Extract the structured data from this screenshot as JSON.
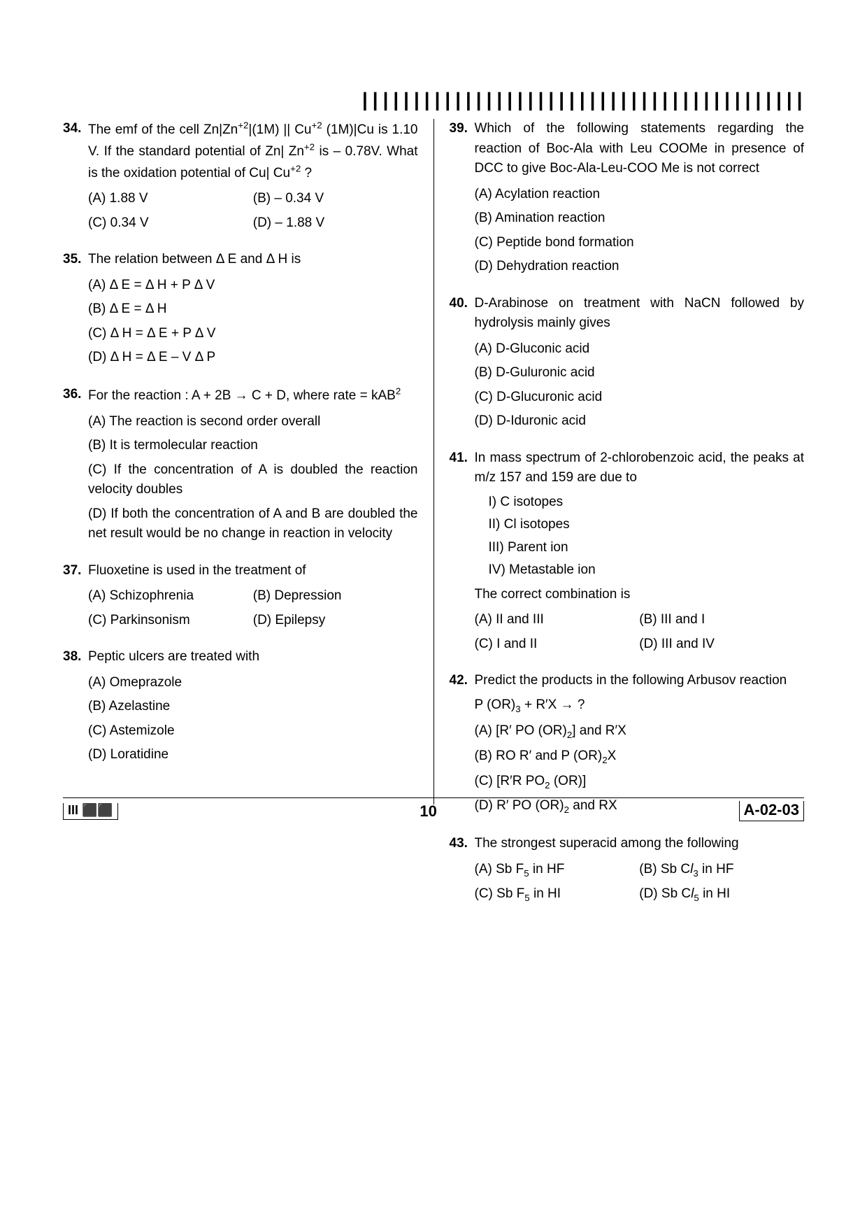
{
  "barcode_glyph": "|||||||||||||||||||||||||||||||||||||||||||",
  "footer": {
    "left": "III ⬛⬛",
    "page": "10",
    "right": "A-02-03"
  },
  "left": {
    "q34": {
      "num": "34.",
      "text_parts": [
        "The emf of the cell Zn|Zn",
        "+2",
        "|(1M) || Cu",
        "+2",
        " (1M)|Cu is 1.10 V. If the standard potential of Zn| Zn",
        "+2",
        " is – 0.78V. What is the oxidation potential of Cu| Cu",
        "+2",
        " ?"
      ],
      "A": "(A)  1.88 V",
      "B": "(B)  – 0.34 V",
      "C": "(C)  0.34 V",
      "D": "(D)  – 1.88 V"
    },
    "q35": {
      "num": "35.",
      "text": "The relation between Δ E and Δ H is",
      "A": "(A)  Δ E = Δ H + P Δ V",
      "B": "(B)  Δ E = Δ H",
      "C": "(C)  Δ H = Δ E + P Δ V",
      "D": "(D)  Δ H = Δ E – V Δ P"
    },
    "q36": {
      "num": "36.",
      "text_parts": [
        "For the reaction : A + 2B → C + D, where rate = kAB",
        "2"
      ],
      "A": "(A)  The reaction is second order overall",
      "B": "(B)  It is termolecular reaction",
      "C": "(C)  If the concentration of A is doubled the reaction velocity doubles",
      "D": "(D)  If both the concentration of A and B are doubled the net result would be no change in reaction in velocity"
    },
    "q37": {
      "num": "37.",
      "text": "Fluoxetine is used in the treatment of",
      "A": "(A)  Schizophrenia",
      "B": "(B)  Depression",
      "C": "(C)  Parkinsonism",
      "D": "(D)  Epilepsy"
    },
    "q38": {
      "num": "38.",
      "text": "Peptic ulcers are treated with",
      "A": "(A)  Omeprazole",
      "B": "(B)  Azelastine",
      "C": "(C)  Astemizole",
      "D": "(D)  Loratidine"
    }
  },
  "right": {
    "q39": {
      "num": "39.",
      "text": "Which of the following statements regarding the reaction of Boc-Ala with Leu COOMe in presence of DCC to give Boc-Ala-Leu-COO Me is not correct",
      "A": "(A)  Acylation reaction",
      "B": "(B)  Amination reaction",
      "C": "(C)  Peptide bond formation",
      "D": "(D)  Dehydration reaction"
    },
    "q40": {
      "num": "40.",
      "text": "D-Arabinose on treatment with NaCN followed by hydrolysis mainly gives",
      "A": "(A)  D-Gluconic acid",
      "B": "(B)  D-Guluronic acid",
      "C": "(C)  D-Glucuronic acid",
      "D": "(D)  D-Iduronic acid"
    },
    "q41": {
      "num": "41.",
      "text": "In mass spectrum of 2-chlorobenzoic acid, the peaks at m/z 157 and 159 are due to",
      "s1": "I)  C isotopes",
      "s2": "II)  Cl isotopes",
      "s3": "III)  Parent ion",
      "s4": "IV)  Metastable ion",
      "post": "The correct combination is",
      "A": "(A)  II and III",
      "B": "(B)  III and I",
      "C": "(C)  I and II",
      "D": "(D)  III and IV"
    },
    "q42": {
      "num": "42.",
      "text": "Predict the products in the following Arbusov reaction",
      "eq_parts": [
        "P (OR)",
        "3",
        " + R′X → ?"
      ],
      "A_parts": [
        "(A)  [R′ PO (OR)",
        "2",
        "] and R′X"
      ],
      "B_parts": [
        "(B)  RO R′ and P (OR)",
        "2",
        "X"
      ],
      "C_parts": [
        "(C)  [R′R PO",
        "2",
        " (OR)]"
      ],
      "D_parts": [
        "(D)  R′ PO (OR)",
        "2",
        " and RX"
      ]
    },
    "q43": {
      "num": "43.",
      "text": "The strongest superacid among the following",
      "A_parts": [
        "(A)  Sb F",
        "5",
        " in HF"
      ],
      "B_parts": [
        "(B)  Sb C",
        "l",
        "3",
        " in HF"
      ],
      "C_parts": [
        "(C)  Sb F",
        "5",
        " in HI"
      ],
      "D_parts": [
        "(D)  Sb C",
        "l",
        "5",
        " in HI"
      ]
    }
  }
}
